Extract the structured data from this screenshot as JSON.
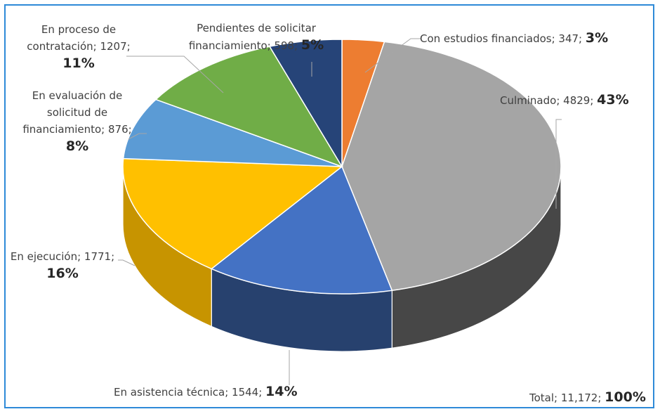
{
  "colors": {
    "border": "#2e8ad8",
    "leader": "#a6a6a6"
  },
  "chart_data": {
    "type": "pie",
    "style": "3d-exploded-view",
    "slices": [
      {
        "label": "Con estudios financiados",
        "value": 347,
        "percent": "3%",
        "color": "#ed7d31",
        "side": "#b5581c"
      },
      {
        "label": "Culminado",
        "value": 4829,
        "percent": "43%",
        "color": "#a5a5a5",
        "side": "#474747"
      },
      {
        "label": "En asistencia técnica",
        "value": 1544,
        "percent": "14%",
        "color": "#4472c4",
        "side": "#27416e"
      },
      {
        "label": "En ejecución",
        "value": 1771,
        "percent": "16%",
        "color": "#ffc000",
        "side": "#c79400"
      },
      {
        "label": "En evaluación de solicitud de financiamiento",
        "value": 876,
        "percent": "8%",
        "color": "#5b9bd5",
        "side": "#3b6f9e"
      },
      {
        "label": "En proceso de contratación",
        "value": 1207,
        "percent": "11%",
        "color": "#70ad47",
        "side": "#4d7d2f"
      },
      {
        "label": "Pendientes de solicitar financiamiento",
        "value": 598,
        "percent": "5%",
        "color": "#264478",
        "side": "#1a2f52"
      }
    ],
    "total": {
      "label": "Total",
      "value": "11,172",
      "percent": "100%"
    }
  },
  "labels": {
    "con_estudios": {
      "text": "Con estudios financiados; 347; ",
      "pct": "3%"
    },
    "culminado": {
      "text": "Culminado; 4829; ",
      "pct": "43%"
    },
    "asistencia": {
      "text": "En asistencia técnica; 1544; ",
      "pct": "14%"
    },
    "ejecucion": {
      "line1": "En ejecución; 1771;",
      "pct": "16%"
    },
    "evaluacion": {
      "line1": "En evaluación de",
      "line2": "solicitud de",
      "line3": "financiamiento; 876;",
      "pct": "8%"
    },
    "contratacion": {
      "line1": "En proceso de",
      "line2": "contratación; 1207;",
      "pct": "11%"
    },
    "pendientes": {
      "line1": "Pendientes de solicitar",
      "line2": "financiamiento; 598; ",
      "pct": "5%"
    },
    "total": {
      "text": "Total; 11,172; ",
      "pct": "100%"
    }
  }
}
